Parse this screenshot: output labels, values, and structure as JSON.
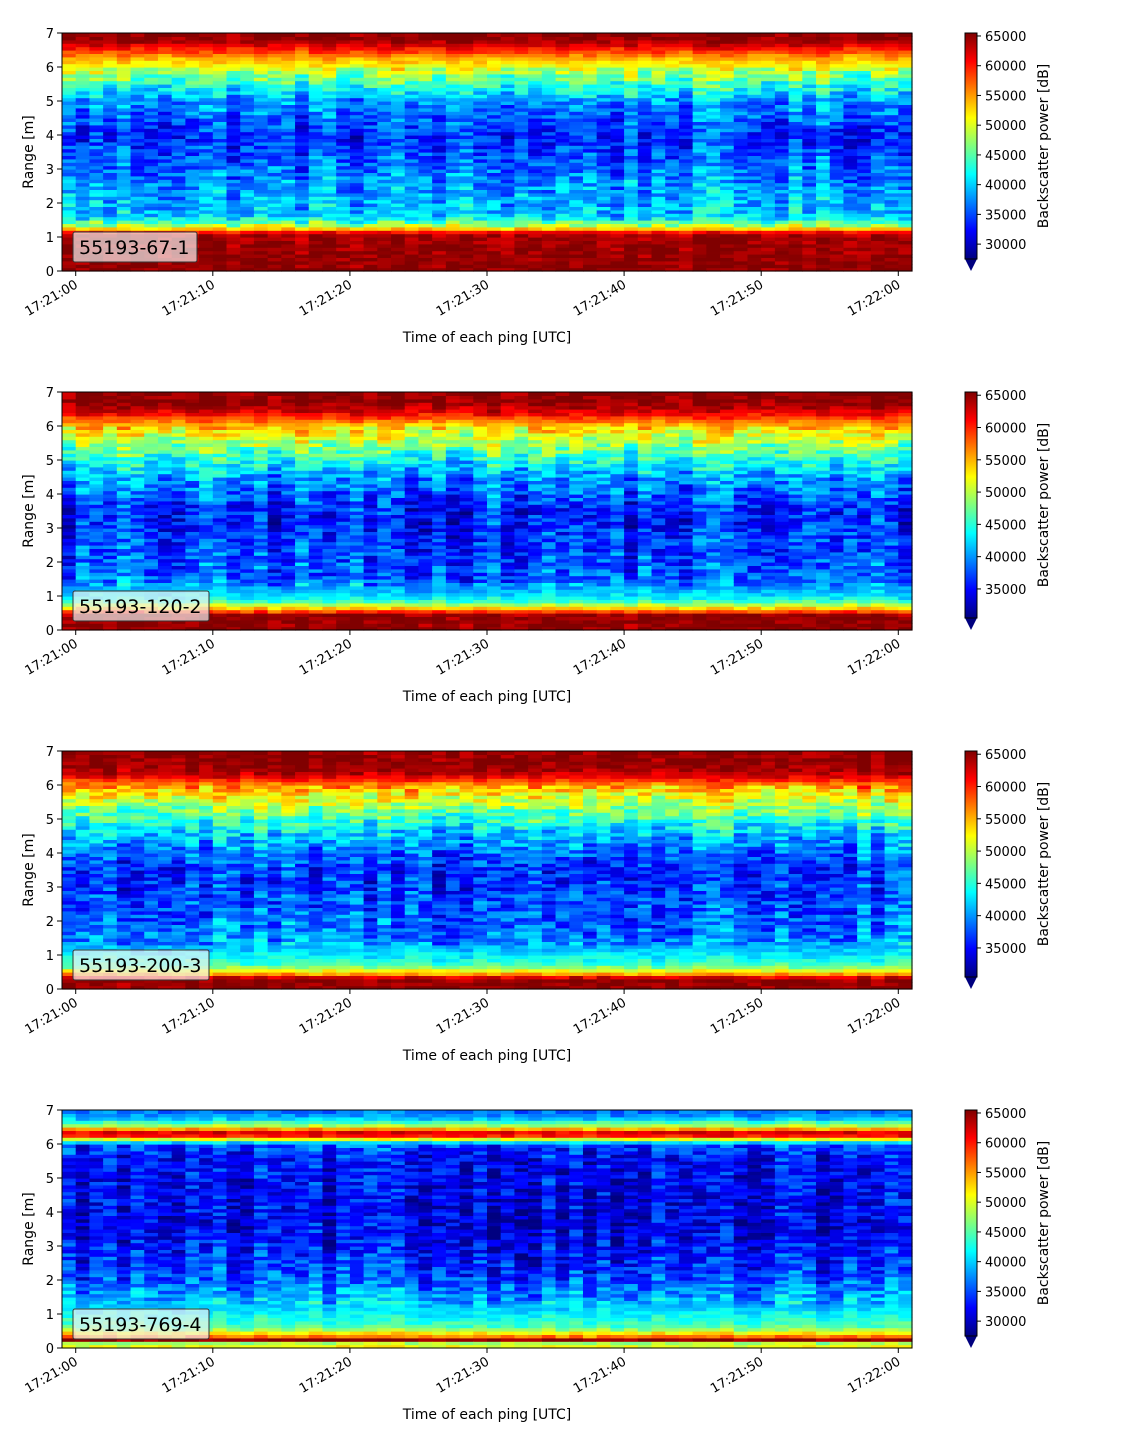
{
  "chart_data": [
    {
      "type": "heatmap",
      "label": "55193-67-1",
      "xlabel": "Time of each ping [UTC]",
      "ylabel": "Range [m]",
      "x_ticks": [
        "17:21:00",
        "17:21:10",
        "17:21:20",
        "17:21:30",
        "17:21:40",
        "17:21:50",
        "17:22:00"
      ],
      "y_ticks": [
        "0",
        "1",
        "2",
        "3",
        "4",
        "5",
        "6",
        "7"
      ],
      "xlim_seconds": [
        -1.0,
        61.0
      ],
      "ylim": [
        0,
        7
      ],
      "colorbar": {
        "label": "Backscatter power [dB]",
        "ticks": [
          "30000",
          "35000",
          "40000",
          "45000",
          "50000",
          "55000",
          "60000",
          "65000"
        ],
        "range": [
          27500,
          65500
        ],
        "extend": "min",
        "colormap": "jet"
      },
      "profile": [
        {
          "range": 0.0,
          "value": 65000
        },
        {
          "range": 0.25,
          "value": 65000
        },
        {
          "range": 1.1,
          "value": 64000
        },
        {
          "range": 1.3,
          "value": 50000
        },
        {
          "range": 1.6,
          "value": 40000
        },
        {
          "range": 2.5,
          "value": 38000
        },
        {
          "range": 4.0,
          "value": 33500
        },
        {
          "range": 5.0,
          "value": 38000
        },
        {
          "range": 5.7,
          "value": 46000
        },
        {
          "range": 6.3,
          "value": 55000
        },
        {
          "range": 6.6,
          "value": 61000
        },
        {
          "range": 6.8,
          "value": 65000
        },
        {
          "range": 7.0,
          "value": 65000
        }
      ]
    },
    {
      "type": "heatmap",
      "label": "55193-120-2",
      "xlabel": "Time of each ping [UTC]",
      "ylabel": "Range [m]",
      "x_ticks": [
        "17:21:00",
        "17:21:10",
        "17:21:20",
        "17:21:30",
        "17:21:40",
        "17:21:50",
        "17:22:00"
      ],
      "y_ticks": [
        "0",
        "1",
        "2",
        "3",
        "4",
        "5",
        "6",
        "7"
      ],
      "xlim_seconds": [
        -1.0,
        61.0
      ],
      "ylim": [
        0,
        7
      ],
      "colorbar": {
        "label": "Backscatter power [dB]",
        "ticks": [
          "35000",
          "40000",
          "45000",
          "50000",
          "55000",
          "60000",
          "65000"
        ],
        "range": [
          30500,
          65500
        ],
        "extend": "min",
        "colormap": "jet"
      },
      "profile": [
        {
          "range": 0.0,
          "value": 65000
        },
        {
          "range": 0.45,
          "value": 65000
        },
        {
          "range": 0.6,
          "value": 56000
        },
        {
          "range": 0.9,
          "value": 44000
        },
        {
          "range": 1.5,
          "value": 38000
        },
        {
          "range": 3.5,
          "value": 35500
        },
        {
          "range": 4.5,
          "value": 40000
        },
        {
          "range": 5.3,
          "value": 47000
        },
        {
          "range": 6.0,
          "value": 54000
        },
        {
          "range": 6.4,
          "value": 62000
        },
        {
          "range": 6.7,
          "value": 65000
        },
        {
          "range": 7.0,
          "value": 65000
        }
      ]
    },
    {
      "type": "heatmap",
      "label": "55193-200-3",
      "xlabel": "Time of each ping [UTC]",
      "ylabel": "Range [m]",
      "x_ticks": [
        "17:21:00",
        "17:21:10",
        "17:21:20",
        "17:21:30",
        "17:21:40",
        "17:21:50",
        "17:22:00"
      ],
      "y_ticks": [
        "0",
        "1",
        "2",
        "3",
        "4",
        "5",
        "6",
        "7"
      ],
      "xlim_seconds": [
        -1.0,
        61.0
      ],
      "ylim": [
        0,
        7
      ],
      "colorbar": {
        "label": "Backscatter power [dB]",
        "ticks": [
          "35000",
          "40000",
          "45000",
          "50000",
          "55000",
          "60000",
          "65000"
        ],
        "range": [
          30500,
          65500
        ],
        "extend": "min",
        "colormap": "jet"
      },
      "profile": [
        {
          "range": 0.0,
          "value": 65000
        },
        {
          "range": 0.3,
          "value": 65000
        },
        {
          "range": 0.45,
          "value": 56000
        },
        {
          "range": 0.7,
          "value": 46000
        },
        {
          "range": 1.5,
          "value": 39000
        },
        {
          "range": 3.5,
          "value": 36000
        },
        {
          "range": 4.5,
          "value": 41000
        },
        {
          "range": 5.4,
          "value": 49000
        },
        {
          "range": 6.0,
          "value": 56000
        },
        {
          "range": 6.3,
          "value": 63000
        },
        {
          "range": 6.6,
          "value": 65000
        },
        {
          "range": 7.0,
          "value": 65000
        }
      ]
    },
    {
      "type": "heatmap",
      "label": "55193-769-4",
      "xlabel": "Time of each ping [UTC]",
      "ylabel": "Range [m]",
      "x_ticks": [
        "17:21:00",
        "17:21:10",
        "17:21:20",
        "17:21:30",
        "17:21:40",
        "17:21:50",
        "17:22:00"
      ],
      "y_ticks": [
        "0",
        "1",
        "2",
        "3",
        "4",
        "5",
        "6",
        "7"
      ],
      "xlim_seconds": [
        -1.0,
        61.0
      ],
      "ylim": [
        0,
        7
      ],
      "colorbar": {
        "label": "Backscatter power [dB]",
        "ticks": [
          "30000",
          "35000",
          "40000",
          "45000",
          "50000",
          "55000",
          "60000",
          "65000"
        ],
        "range": [
          27500,
          65500
        ],
        "extend": "min",
        "colormap": "jet"
      },
      "profile": [
        {
          "range": 0.0,
          "value": 52000
        },
        {
          "range": 0.15,
          "value": 48000
        },
        {
          "range": 0.25,
          "value": 65000
        },
        {
          "range": 0.35,
          "value": 56000
        },
        {
          "range": 0.6,
          "value": 45000
        },
        {
          "range": 1.2,
          "value": 40000
        },
        {
          "range": 2.0,
          "value": 35000
        },
        {
          "range": 3.5,
          "value": 31000
        },
        {
          "range": 5.5,
          "value": 32000
        },
        {
          "range": 6.0,
          "value": 35000
        },
        {
          "range": 6.3,
          "value": 65000
        },
        {
          "range": 6.55,
          "value": 48000
        },
        {
          "range": 6.8,
          "value": 38000
        },
        {
          "range": 7.0,
          "value": 36000
        }
      ]
    }
  ]
}
